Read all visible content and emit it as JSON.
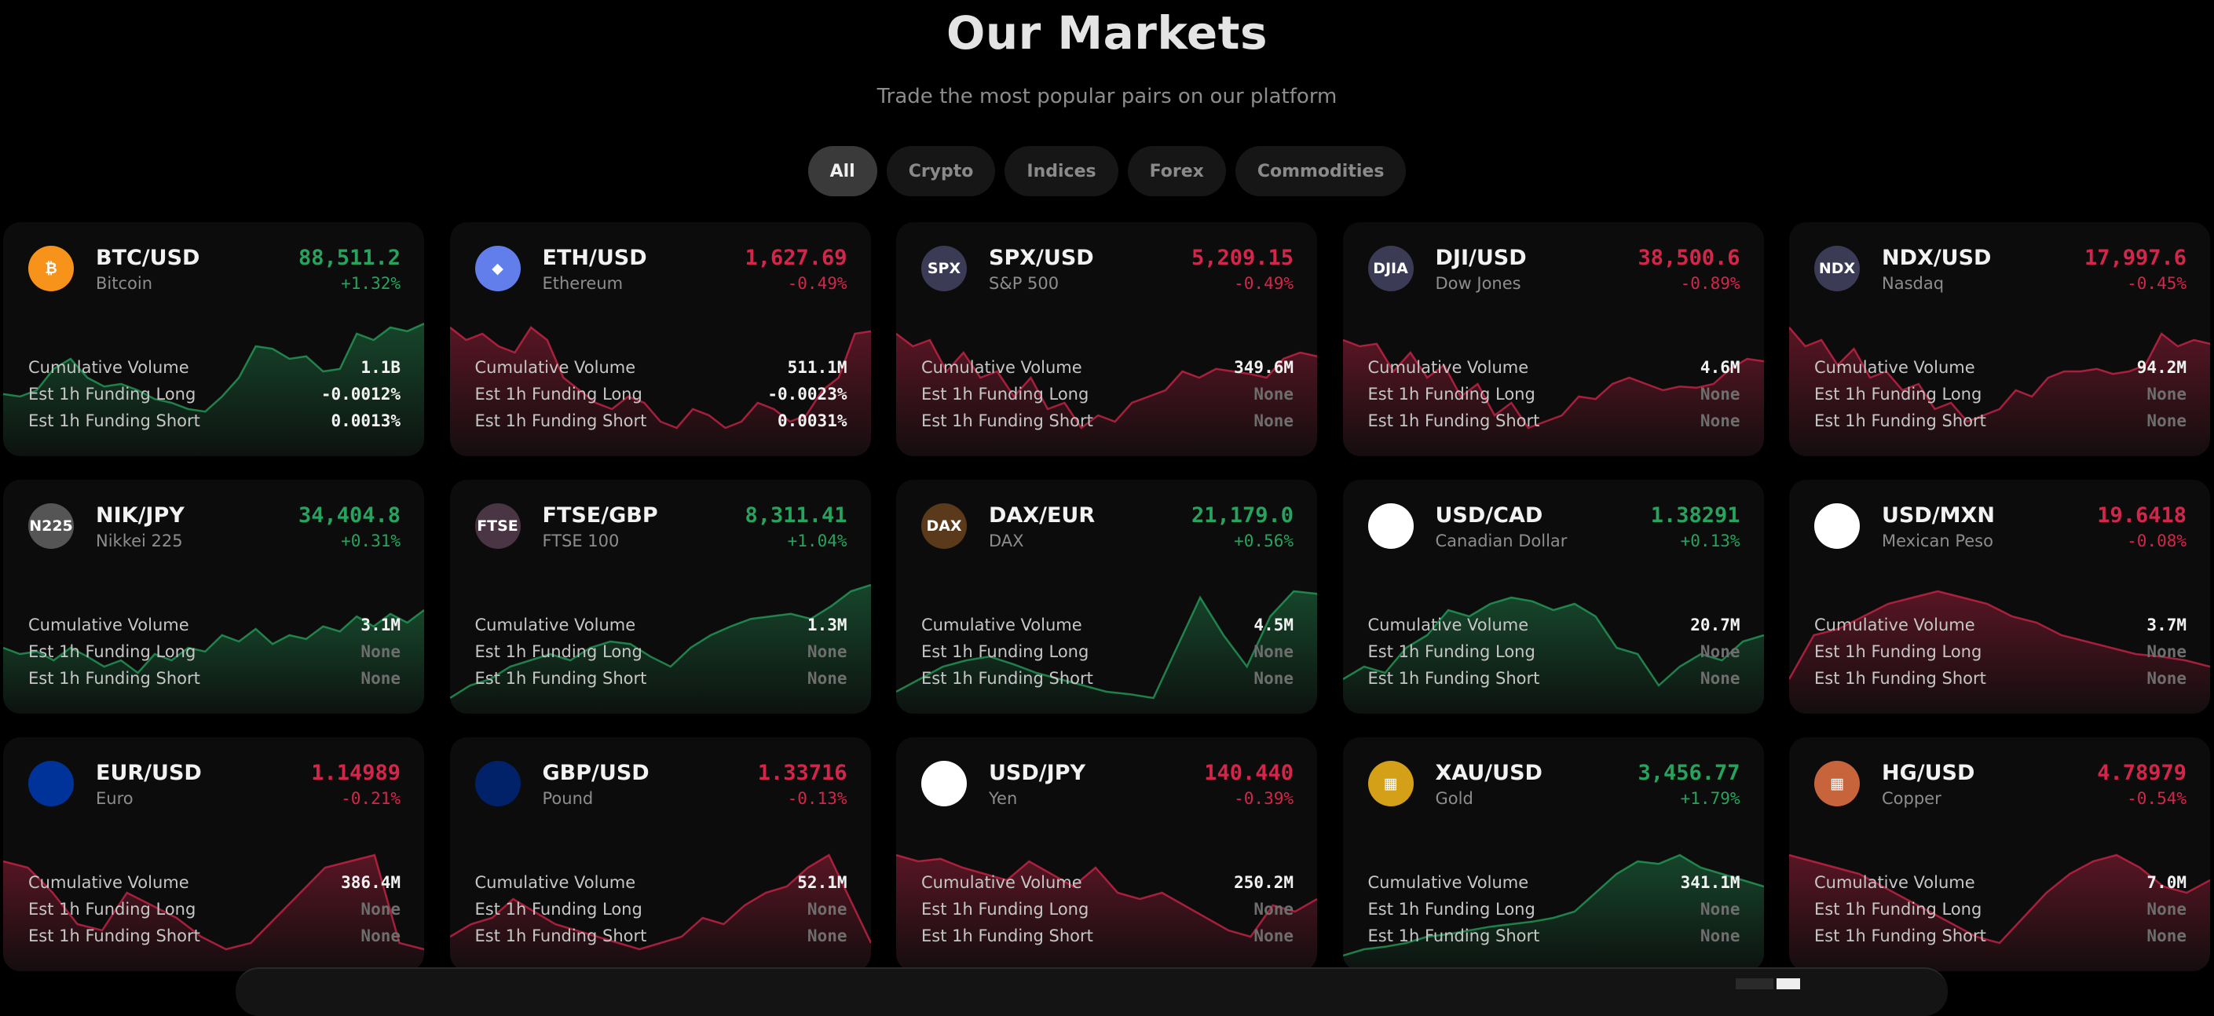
{
  "page": {
    "title": "Our Markets",
    "subtitle": "Trade the most popular pairs on our platform"
  },
  "filters": [
    {
      "label": "All",
      "active": true
    },
    {
      "label": "Crypto",
      "active": false
    },
    {
      "label": "Indices",
      "active": false
    },
    {
      "label": "Forex",
      "active": false
    },
    {
      "label": "Commodities",
      "active": false
    }
  ],
  "labels": {
    "volume": "Cumulative Volume",
    "funding_long": "Est 1h Funding Long",
    "funding_short": "Est 1h Funding Short"
  },
  "colors": {
    "up": "#27a35d",
    "down": "#d3264b"
  },
  "markets": [
    {
      "symbol": "BTC/USD",
      "name": "Bitcoin",
      "price": "88,511.2",
      "change": "+1.32%",
      "direction": "up",
      "volume": "1.1B",
      "funding_long": "-0.0012%",
      "funding_short": "0.0013%",
      "icon": "bitcoin-icon",
      "icon_text": "₿",
      "icon_color": "#f7931a",
      "trend": [
        0.42,
        0.4,
        0.45,
        0.62,
        0.7,
        0.55,
        0.48,
        0.5,
        0.45,
        0.38,
        0.35,
        0.3,
        0.28,
        0.4,
        0.55,
        0.8,
        0.78,
        0.7,
        0.72,
        0.6,
        0.62,
        0.9,
        0.85,
        0.95,
        0.92,
        0.98
      ]
    },
    {
      "symbol": "ETH/USD",
      "name": "Ethereum",
      "price": "1,627.69",
      "change": "-0.49%",
      "direction": "down",
      "volume": "511.1M",
      "funding_long": "-0.0023%",
      "funding_short": "0.0031%",
      "icon": "ethereum-icon",
      "icon_text": "◆",
      "icon_color": "#627eea",
      "trend": [
        0.95,
        0.85,
        0.9,
        0.8,
        0.75,
        0.95,
        0.85,
        0.55,
        0.45,
        0.35,
        0.3,
        0.4,
        0.35,
        0.2,
        0.15,
        0.3,
        0.25,
        0.15,
        0.2,
        0.35,
        0.3,
        0.2,
        0.25,
        0.45,
        0.55,
        0.9,
        0.92
      ]
    },
    {
      "symbol": "SPX/USD",
      "name": "S&P 500",
      "price": "5,209.15",
      "change": "-0.49%",
      "direction": "down",
      "volume": "349.6M",
      "funding_long": "None",
      "funding_short": "None",
      "icon": "us-flag-icon",
      "icon_text": "SPX",
      "icon_color": "#3b3b55",
      "trend": [
        0.9,
        0.8,
        0.85,
        0.6,
        0.75,
        0.55,
        0.6,
        0.4,
        0.55,
        0.3,
        0.35,
        0.15,
        0.25,
        0.2,
        0.35,
        0.4,
        0.45,
        0.6,
        0.55,
        0.62,
        0.6,
        0.58,
        0.55,
        0.7,
        0.75,
        0.72
      ]
    },
    {
      "symbol": "DJI/USD",
      "name": "Dow Jones",
      "price": "38,500.6",
      "change": "-0.89%",
      "direction": "down",
      "volume": "4.6M",
      "funding_long": "None",
      "funding_short": "None",
      "icon": "us-flag-icon",
      "icon_text": "DJIA",
      "icon_color": "#3b3b55",
      "trend": [
        0.85,
        0.8,
        0.82,
        0.6,
        0.75,
        0.55,
        0.65,
        0.4,
        0.5,
        0.25,
        0.35,
        0.15,
        0.2,
        0.25,
        0.4,
        0.38,
        0.5,
        0.55,
        0.5,
        0.45,
        0.48,
        0.47,
        0.5,
        0.62,
        0.7,
        0.68
      ]
    },
    {
      "symbol": "NDX/USD",
      "name": "Nasdaq",
      "price": "17,997.6",
      "change": "-0.45%",
      "direction": "down",
      "volume": "94.2M",
      "funding_long": "None",
      "funding_short": "None",
      "icon": "us-flag-icon",
      "icon_text": "NDX",
      "icon_color": "#3b3b55",
      "trend": [
        0.95,
        0.8,
        0.85,
        0.65,
        0.78,
        0.55,
        0.6,
        0.45,
        0.5,
        0.3,
        0.35,
        0.2,
        0.25,
        0.3,
        0.45,
        0.4,
        0.55,
        0.6,
        0.6,
        0.62,
        0.58,
        0.6,
        0.65,
        0.9,
        0.8,
        0.85,
        0.82
      ]
    },
    {
      "symbol": "NIK/JPY",
      "name": "Nikkei 225",
      "price": "34,404.8",
      "change": "+0.31%",
      "direction": "up",
      "volume": "3.1M",
      "funding_long": "None",
      "funding_short": "None",
      "icon": "japan-flag-icon",
      "icon_text": "N225",
      "icon_color": "#555555",
      "trend": [
        0.45,
        0.4,
        0.42,
        0.35,
        0.45,
        0.38,
        0.3,
        0.35,
        0.25,
        0.4,
        0.35,
        0.45,
        0.42,
        0.55,
        0.5,
        0.6,
        0.48,
        0.55,
        0.52,
        0.62,
        0.58,
        0.7,
        0.62,
        0.72,
        0.65,
        0.75
      ]
    },
    {
      "symbol": "FTSE/GBP",
      "name": "FTSE 100",
      "price": "8,311.41",
      "change": "+1.04%",
      "direction": "up",
      "volume": "1.3M",
      "funding_long": "None",
      "funding_short": "None",
      "icon": "uk-flag-icon",
      "icon_text": "FTSE",
      "icon_color": "#4a3545",
      "trend": [
        0.05,
        0.15,
        0.2,
        0.3,
        0.35,
        0.4,
        0.35,
        0.45,
        0.5,
        0.48,
        0.38,
        0.3,
        0.45,
        0.55,
        0.62,
        0.68,
        0.7,
        0.72,
        0.68,
        0.78,
        0.9,
        0.95
      ]
    },
    {
      "symbol": "DAX/EUR",
      "name": "DAX",
      "price": "21,179.0",
      "change": "+0.56%",
      "direction": "up",
      "volume": "4.5M",
      "funding_long": "None",
      "funding_short": "None",
      "icon": "germany-flag-icon",
      "icon_text": "DAX",
      "icon_color": "#5a3a1a",
      "trend": [
        0.1,
        0.2,
        0.3,
        0.35,
        0.38,
        0.32,
        0.25,
        0.2,
        0.15,
        0.1,
        0.08,
        0.05,
        0.45,
        0.85,
        0.55,
        0.3,
        0.7,
        0.9,
        0.88
      ]
    },
    {
      "symbol": "USD/CAD",
      "name": "Canadian Dollar",
      "price": "1.38291",
      "change": "+0.13%",
      "direction": "up",
      "volume": "20.7M",
      "funding_long": "None",
      "funding_short": "None",
      "icon": "us-canada-flags-icon",
      "icon_text": "",
      "icon_color": "#ffffff",
      "trend": [
        0.2,
        0.3,
        0.25,
        0.45,
        0.55,
        0.75,
        0.7,
        0.8,
        0.85,
        0.82,
        0.75,
        0.8,
        0.7,
        0.45,
        0.4,
        0.15,
        0.3,
        0.4,
        0.35,
        0.5,
        0.55
      ]
    },
    {
      "symbol": "USD/MXN",
      "name": "Mexican Peso",
      "price": "19.6418",
      "change": "-0.08%",
      "direction": "down",
      "volume": "3.7M",
      "funding_long": "None",
      "funding_short": "None",
      "icon": "us-mexico-flags-icon",
      "icon_text": "",
      "icon_color": "#ffffff",
      "trend": [
        0.2,
        0.55,
        0.6,
        0.7,
        0.8,
        0.85,
        0.9,
        0.85,
        0.8,
        0.7,
        0.65,
        0.55,
        0.5,
        0.45,
        0.4,
        0.38,
        0.35,
        0.3
      ]
    },
    {
      "symbol": "EUR/USD",
      "name": "Euro",
      "price": "1.14989",
      "change": "-0.21%",
      "direction": "down",
      "volume": "386.4M",
      "funding_long": "None",
      "funding_short": "None",
      "icon": "eu-us-flags-icon",
      "icon_text": "",
      "icon_color": "#003399",
      "trend": [
        0.8,
        0.75,
        0.55,
        0.3,
        0.25,
        0.55,
        0.45,
        0.35,
        0.2,
        0.1,
        0.15,
        0.35,
        0.55,
        0.75,
        0.8,
        0.85,
        0.15,
        0.1
      ]
    },
    {
      "symbol": "GBP/USD",
      "name": "Pound",
      "price": "1.33716",
      "change": "-0.13%",
      "direction": "down",
      "volume": "52.1M",
      "funding_long": "None",
      "funding_short": "None",
      "icon": "uk-us-flags-icon",
      "icon_text": "",
      "icon_color": "#012169",
      "trend": [
        0.2,
        0.3,
        0.35,
        0.5,
        0.4,
        0.3,
        0.25,
        0.2,
        0.15,
        0.1,
        0.15,
        0.2,
        0.35,
        0.3,
        0.45,
        0.55,
        0.6,
        0.75,
        0.85,
        0.5,
        0.15
      ]
    },
    {
      "symbol": "USD/JPY",
      "name": "Yen",
      "price": "140.440",
      "change": "-0.39%",
      "direction": "down",
      "volume": "250.2M",
      "funding_long": "None",
      "funding_short": "None",
      "icon": "us-japan-flags-icon",
      "icon_text": "",
      "icon_color": "#ffffff",
      "trend": [
        0.85,
        0.8,
        0.82,
        0.75,
        0.7,
        0.65,
        0.8,
        0.7,
        0.6,
        0.75,
        0.55,
        0.5,
        0.55,
        0.45,
        0.35,
        0.25,
        0.2,
        0.45,
        0.4,
        0.5
      ]
    },
    {
      "symbol": "XAU/USD",
      "name": "Gold",
      "price": "3,456.77",
      "change": "+1.79%",
      "direction": "up",
      "volume": "341.1M",
      "funding_long": "None",
      "funding_short": "None",
      "icon": "gold-bars-icon",
      "icon_text": "▦",
      "icon_color": "#d4a017",
      "trend": [
        0.05,
        0.1,
        0.12,
        0.15,
        0.2,
        0.22,
        0.25,
        0.28,
        0.3,
        0.32,
        0.35,
        0.4,
        0.55,
        0.7,
        0.8,
        0.78,
        0.85,
        0.75,
        0.7,
        0.65,
        0.6
      ]
    },
    {
      "symbol": "HG/USD",
      "name": "Copper",
      "price": "4.78979",
      "change": "-0.54%",
      "direction": "down",
      "volume": "7.0M",
      "funding_long": "None",
      "funding_short": "None",
      "icon": "copper-bars-icon",
      "icon_text": "▦",
      "icon_color": "#c8643c",
      "trend": [
        0.85,
        0.8,
        0.75,
        0.7,
        0.6,
        0.5,
        0.4,
        0.3,
        0.2,
        0.15,
        0.35,
        0.55,
        0.7,
        0.8,
        0.85,
        0.75,
        0.6,
        0.55,
        0.65
      ]
    }
  ]
}
